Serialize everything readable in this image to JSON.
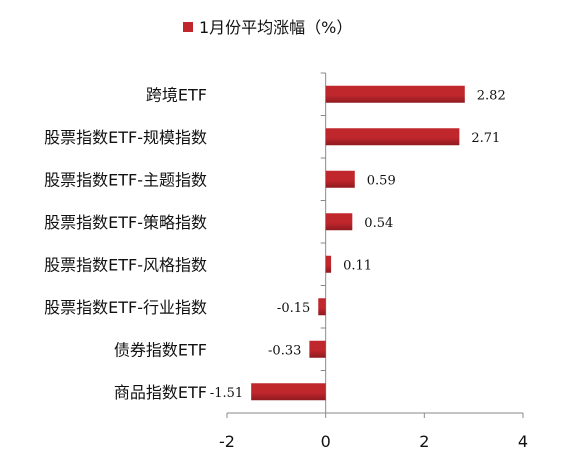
{
  "chart_data": {
    "type": "bar",
    "orientation": "horizontal",
    "categories": [
      "跨境ETF",
      "股票指数ETF-规模指数",
      "股票指数ETF-主题指数",
      "股票指数ETF-策略指数",
      "股票指数ETF-风格指数",
      "股票指数ETF-行业指数",
      "债券指数ETF",
      "商品指数ETF"
    ],
    "series": [
      {
        "name": "1月份平均涨幅（%）",
        "values": [
          2.82,
          2.71,
          0.59,
          0.54,
          0.11,
          -0.15,
          -0.33,
          -1.51
        ],
        "labels": [
          "2.82",
          "2.71",
          "0.59",
          "0.54",
          "0.11",
          "-0.15",
          "-0.33",
          "-1.51"
        ]
      }
    ],
    "xlim": [
      -2,
      4
    ],
    "xticks": [
      "-2",
      "0",
      "2",
      "4"
    ],
    "xtick_values": [
      -2,
      0,
      2,
      4
    ],
    "grid": false,
    "legend_position": "top",
    "colors": {
      "bar": "#C0272D",
      "bar_dark": "#8E1A1F",
      "axis": "#8a8a8a"
    }
  }
}
